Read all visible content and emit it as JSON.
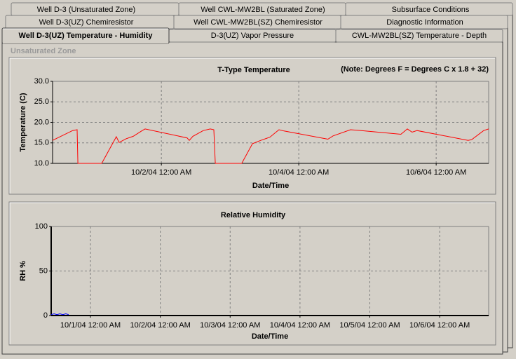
{
  "tabs": [
    [
      "Well D-3 (Unsaturated Zone)",
      "Well CWL-MW2BL (Saturated Zone)",
      "Subsurface Conditions"
    ],
    [
      "Well D-3(UZ) Chemiresistor",
      "Well CWL-MW2BL(SZ) Chemiresistor",
      "Diagnostic Information"
    ],
    [
      "Well D-3(UZ) Temperature - Humidity",
      "D-3(UZ) Vapor Pressure",
      "CWL-MW2BL(SZ) Temperature - Depth"
    ]
  ],
  "group_label": "Unsaturated Zone",
  "chart_data": [
    {
      "type": "line",
      "title": "T-Type Temperature",
      "note": "(Note: Degrees F = Degrees C x 1.8 + 32)",
      "x_label": "Date/Time",
      "y_label": "Temperature (C)",
      "x": [
        "9/30/04 10:00 AM",
        "9/30/04 5:00 PM",
        "9/30/04 6:35 PM",
        "9/30/04 6:50 PM",
        "10/1/04 3:10 AM",
        "10/1/04 8:15 AM",
        "10/1/04 9:15 AM",
        "10/1/04 11:40 AM",
        "10/1/04 2:10 PM",
        "10/1/04 5:20 PM",
        "10/1/04 6:20 PM",
        "10/2/04 9:00 AM",
        "10/2/04 9:45 AM",
        "10/2/04 11:00 AM",
        "10/2/04 2:40 PM",
        "10/2/04 5:05 PM",
        "10/2/04 6:20 PM",
        "10/2/04 6:50 PM",
        "10/3/04 4:05 AM",
        "10/3/04 7:50 AM",
        "10/3/04 10:45 AM",
        "10/3/04 1:55 PM",
        "10/3/04 5:05 PM",
        "10/3/04 6:50 PM",
        "10/4/04 10:10 AM",
        "10/4/04 12:00 PM",
        "10/4/04 6:05 PM",
        "10/4/04 9:50 PM",
        "10/5/04 11:40 AM",
        "10/5/04 1:55 PM",
        "10/5/04 3:35 PM",
        "10/5/04 5:20 PM",
        "10/6/04 11:10 AM",
        "10/6/04 12:25 PM",
        "10/6/04 4:35 PM",
        "10/6/04 6:20 PM"
      ],
      "series": [
        {
          "color": "#ff0000",
          "values": [
            15.6,
            18.0,
            18.2,
            10.0,
            10.0,
            16.5,
            15.1,
            16.0,
            16.6,
            18.0,
            18.4,
            16.2,
            15.6,
            16.6,
            18.0,
            18.4,
            18.2,
            10.0,
            10.0,
            14.8,
            15.6,
            16.4,
            18.2,
            17.9,
            15.9,
            16.7,
            18.2,
            18.0,
            17.1,
            18.4,
            17.6,
            18.0,
            15.6,
            15.8,
            18.0,
            18.4
          ]
        }
      ],
      "xlim": [
        "9/30/04 10:00 AM",
        "10/6/04 6:20 PM"
      ],
      "xticks": [
        "10/2/04 12:00 AM",
        "10/4/04 12:00 AM",
        "10/6/04 12:00 AM"
      ],
      "ylim": [
        10,
        30
      ],
      "yticks": [
        {
          "value": 10,
          "label": "10.0"
        },
        {
          "value": 15,
          "label": "15.0"
        },
        {
          "value": 20,
          "label": "20.0"
        },
        {
          "value": 25,
          "label": "25.0"
        },
        {
          "value": 30,
          "label": "30.0"
        }
      ],
      "grid": true
    },
    {
      "type": "line",
      "title": "Relative Humidity",
      "x_label": "Date/Time",
      "y_label": "RH %",
      "x": [
        "9/30/04 10:30 AM",
        "9/30/04 11:30 AM",
        "9/30/04 12:30 PM",
        "9/30/04 1:30 PM",
        "9/30/04 2:30 PM",
        "9/30/04 3:30 PM",
        "9/30/04 4:30 PM"
      ],
      "series": [
        {
          "color": "#0000ff",
          "values": [
            1,
            2,
            1,
            2,
            1,
            2,
            1
          ]
        }
      ],
      "xlim": [
        "9/30/04 10:30 AM",
        "10/6/04 4:50 PM"
      ],
      "xticks": [
        "10/1/04 12:00 AM",
        "10/2/04 12:00 AM",
        "10/3/04 12:00 AM",
        "10/4/04 12:00 AM",
        "10/5/04 12:00 AM",
        "10/6/04 12:00 AM"
      ],
      "ylim": [
        0,
        100
      ],
      "yticks": [
        0,
        50,
        100
      ],
      "grid": true
    }
  ]
}
